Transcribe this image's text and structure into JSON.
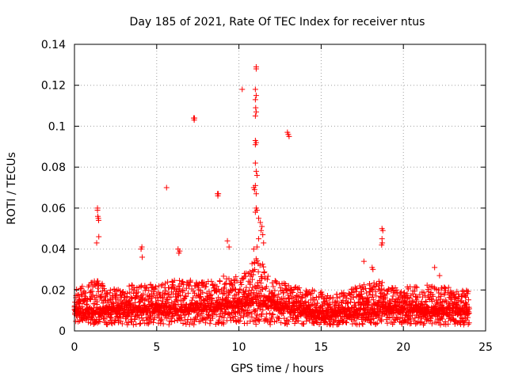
{
  "chart_data": {
    "type": "scatter",
    "title": "Day 185 of 2021, Rate Of TEC Index for receiver ntus",
    "xlabel": "GPS time / hours",
    "ylabel": "ROTI / TECUs",
    "xlim": [
      0,
      25
    ],
    "ylim": [
      0,
      0.14
    ],
    "xticks": [
      0,
      5,
      10,
      15,
      20,
      25
    ],
    "xtick_labels": [
      "0",
      "5",
      "10",
      "15",
      "20",
      "25"
    ],
    "yticks": [
      0,
      0.02,
      0.04,
      0.06,
      0.08,
      0.1,
      0.12,
      0.14
    ],
    "ytick_labels": [
      "0",
      "0.02",
      "0.04",
      "0.06",
      "0.08",
      "0.1",
      "0.12",
      "0.14"
    ],
    "grid": true,
    "marker": "+",
    "color": "#ff0000",
    "outlier_points": [
      [
        1.4,
        0.06
      ],
      [
        1.4,
        0.059
      ],
      [
        1.42,
        0.056
      ],
      [
        1.45,
        0.055
      ],
      [
        1.47,
        0.054
      ],
      [
        1.48,
        0.046
      ],
      [
        1.35,
        0.043
      ],
      [
        4.1,
        0.041
      ],
      [
        4.05,
        0.04
      ],
      [
        4.12,
        0.036
      ],
      [
        5.6,
        0.07
      ],
      [
        6.3,
        0.04
      ],
      [
        6.35,
        0.038
      ],
      [
        6.4,
        0.039
      ],
      [
        7.25,
        0.104
      ],
      [
        7.3,
        0.104
      ],
      [
        7.28,
        0.103
      ],
      [
        8.7,
        0.067
      ],
      [
        8.75,
        0.067
      ],
      [
        8.72,
        0.066
      ],
      [
        9.3,
        0.044
      ],
      [
        9.4,
        0.041
      ],
      [
        10.2,
        0.118
      ],
      [
        10.9,
        0.07
      ],
      [
        10.95,
        0.069
      ],
      [
        11.0,
        0.071
      ],
      [
        11.05,
        0.128
      ],
      [
        11.05,
        0.129
      ],
      [
        11.0,
        0.118
      ],
      [
        11.05,
        0.115
      ],
      [
        11.0,
        0.113
      ],
      [
        11.02,
        0.109
      ],
      [
        11.05,
        0.107
      ],
      [
        11.0,
        0.105
      ],
      [
        11.0,
        0.093
      ],
      [
        11.05,
        0.092
      ],
      [
        11.0,
        0.091
      ],
      [
        11.0,
        0.082
      ],
      [
        11.05,
        0.078
      ],
      [
        11.1,
        0.076
      ],
      [
        11.05,
        0.067
      ],
      [
        11.05,
        0.06
      ],
      [
        11.1,
        0.059
      ],
      [
        11.0,
        0.058
      ],
      [
        11.2,
        0.055
      ],
      [
        11.3,
        0.053
      ],
      [
        11.4,
        0.051
      ],
      [
        11.35,
        0.049
      ],
      [
        11.45,
        0.047
      ],
      [
        11.2,
        0.045
      ],
      [
        11.5,
        0.043
      ],
      [
        11.1,
        0.041
      ],
      [
        10.9,
        0.04
      ],
      [
        13.0,
        0.096
      ],
      [
        13.05,
        0.095
      ],
      [
        12.95,
        0.097
      ],
      [
        17.6,
        0.034
      ],
      [
        18.1,
        0.031
      ],
      [
        18.15,
        0.03
      ],
      [
        18.7,
        0.05
      ],
      [
        18.75,
        0.049
      ],
      [
        18.7,
        0.045
      ],
      [
        18.72,
        0.043
      ],
      [
        18.68,
        0.042
      ],
      [
        21.9,
        0.031
      ],
      [
        22.2,
        0.027
      ]
    ],
    "band": {
      "x_range": [
        0,
        24
      ],
      "x_step": 0.025,
      "min_baseline": 0.003,
      "low_values_x": [
        0,
        2,
        4,
        6,
        8,
        10,
        11,
        12,
        14,
        15,
        16,
        18,
        20,
        22,
        24
      ],
      "low_values_y": [
        0.008,
        0.008,
        0.009,
        0.009,
        0.01,
        0.011,
        0.013,
        0.011,
        0.008,
        0.006,
        0.007,
        0.008,
        0.009,
        0.008,
        0.008
      ],
      "high_values_x": [
        0,
        1,
        1.5,
        2,
        3,
        4,
        5,
        6,
        7,
        8,
        9,
        10,
        10.5,
        11,
        11.5,
        12,
        13,
        14,
        15,
        16,
        17,
        18,
        18.7,
        19,
        20,
        21,
        22,
        23,
        24
      ],
      "high_values_y": [
        0.02,
        0.024,
        0.025,
        0.02,
        0.021,
        0.024,
        0.022,
        0.025,
        0.025,
        0.024,
        0.027,
        0.027,
        0.03,
        0.036,
        0.032,
        0.025,
        0.023,
        0.021,
        0.019,
        0.018,
        0.021,
        0.024,
        0.026,
        0.022,
        0.021,
        0.023,
        0.022,
        0.021,
        0.02
      ]
    }
  }
}
